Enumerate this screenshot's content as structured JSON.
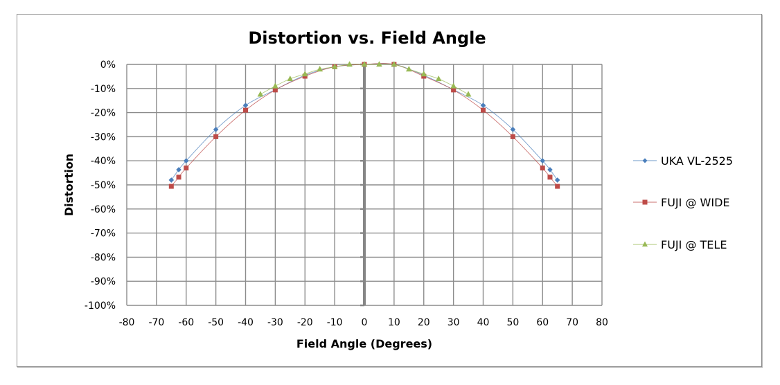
{
  "chart_data": {
    "type": "scatter",
    "title": "Distortion vs. Field Angle",
    "xlabel": "Field Angle (Degrees)",
    "ylabel": "Distortion",
    "xlim": [
      -80,
      80
    ],
    "ylim": [
      -100,
      0
    ],
    "x_ticks": [
      -80,
      -70,
      -60,
      -50,
      -40,
      -30,
      -20,
      -10,
      0,
      10,
      20,
      30,
      40,
      50,
      60,
      70,
      80
    ],
    "x_tick_labels": [
      "-80",
      "-70",
      "-60",
      "-50",
      "-40",
      "-30",
      "-20",
      "-10",
      "0",
      "10",
      "20",
      "30",
      "40",
      "50",
      "60",
      "70",
      "80"
    ],
    "y_ticks": [
      0,
      -10,
      -20,
      -30,
      -40,
      -50,
      -60,
      -70,
      -80,
      -90,
      -100
    ],
    "y_tick_labels": [
      "0%",
      "-10%",
      "-20%",
      "-30%",
      "-40%",
      "-50%",
      "-60%",
      "-70%",
      "-80%",
      "-90%",
      "-100%"
    ],
    "grid": true,
    "legend_position": "right",
    "series": [
      {
        "name": "UKA VL-2525",
        "color": "#4a7ebb",
        "marker": "diamond",
        "x": [
          -65,
          -62.5,
          -60,
          -50,
          -40,
          -30,
          -20,
          -10,
          0,
          10,
          20,
          30,
          40,
          50,
          60,
          62.5,
          65
        ],
        "y": [
          -48,
          -43.7,
          -40,
          -27,
          -17,
          -10.5,
          -4.5,
          -1,
          0,
          0,
          -4.5,
          -10.5,
          -17,
          -27,
          -40,
          -43.7,
          -48
        ]
      },
      {
        "name": "FUJI @ WIDE",
        "color": "#be4b48",
        "marker": "square",
        "x": [
          -65,
          -62.5,
          -60,
          -50,
          -40,
          -30,
          -20,
          -10,
          0,
          10,
          20,
          30,
          40,
          50,
          60,
          62.5,
          65
        ],
        "y": [
          -50.6,
          -46.8,
          -43,
          -30,
          -19,
          -10.6,
          -4.9,
          -1,
          0,
          0,
          -4.9,
          -10.6,
          -19,
          -30,
          -43,
          -46.8,
          -50.6
        ]
      },
      {
        "name": "FUJI @ TELE",
        "color": "#98b954",
        "marker": "triangle",
        "x": [
          -35,
          -30,
          -25,
          -20,
          -15,
          -10,
          -5,
          0,
          5,
          10,
          15,
          20,
          25,
          30,
          35
        ],
        "y": [
          -12.4,
          -9,
          -6,
          -4,
          -2,
          -1,
          0,
          0,
          0,
          0,
          -2,
          -4,
          -6,
          -9,
          -12.4
        ]
      }
    ]
  }
}
